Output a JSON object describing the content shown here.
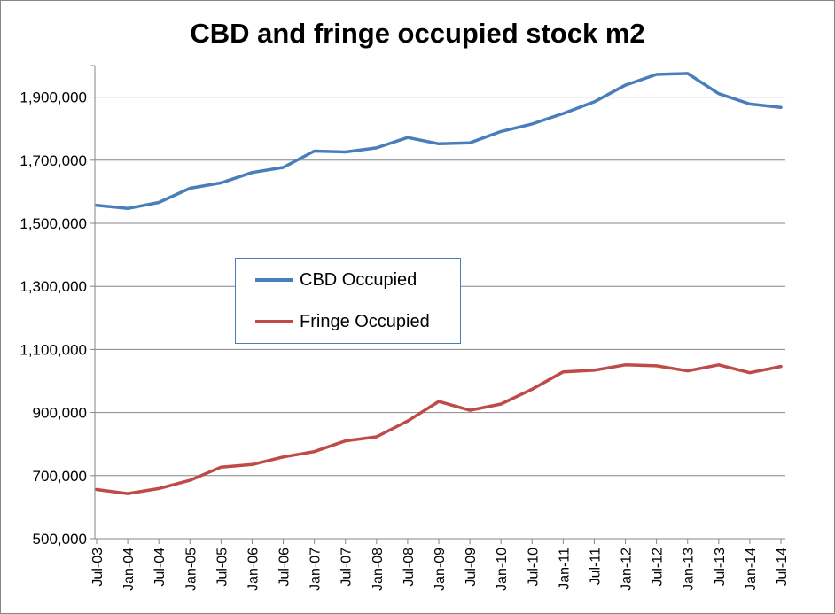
{
  "chart_data": {
    "type": "line",
    "title": "CBD and fringe occupied stock m2",
    "xlabel": "",
    "ylabel": "",
    "ylim": [
      500000,
      2000000
    ],
    "yticks": [
      500000,
      700000,
      900000,
      1100000,
      1300000,
      1500000,
      1700000,
      1900000
    ],
    "ytick_labels": [
      "500,000",
      "700,000",
      "900,000",
      "1,100,000",
      "1,300,000",
      "1,500,000",
      "1,700,000",
      "1,900,000"
    ],
    "categories": [
      "Jul-03",
      "Jan-04",
      "Jul-04",
      "Jan-05",
      "Jul-05",
      "Jan-06",
      "Jul-06",
      "Jan-07",
      "Jul-07",
      "Jan-08",
      "Jul-08",
      "Jan-09",
      "Jul-09",
      "Jan-10",
      "Jul-10",
      "Jan-11",
      "Jul-11",
      "Jan-12",
      "Jul-12",
      "Jan-13",
      "Jul-13",
      "Jan-14",
      "Jul-14"
    ],
    "series": [
      {
        "name": "CBD Occupied",
        "color": "#4a7ebb",
        "values": [
          1557000,
          1547000,
          1566000,
          1611000,
          1628000,
          1661000,
          1677000,
          1729000,
          1726000,
          1739000,
          1772000,
          1752000,
          1755000,
          1791000,
          1815000,
          1848000,
          1885000,
          1938000,
          1972000,
          1975000,
          1911000,
          1878000,
          1867000
        ]
      },
      {
        "name": "Fringe Occupied",
        "color": "#be4b48",
        "values": [
          656000,
          643000,
          659000,
          685000,
          727000,
          735000,
          759000,
          776000,
          810000,
          823000,
          873000,
          935000,
          907000,
          927000,
          974000,
          1029000,
          1034000,
          1051000,
          1048000,
          1032000,
          1051000,
          1026000,
          1046000
        ]
      }
    ],
    "grid": true,
    "legend_position": "center-left"
  }
}
